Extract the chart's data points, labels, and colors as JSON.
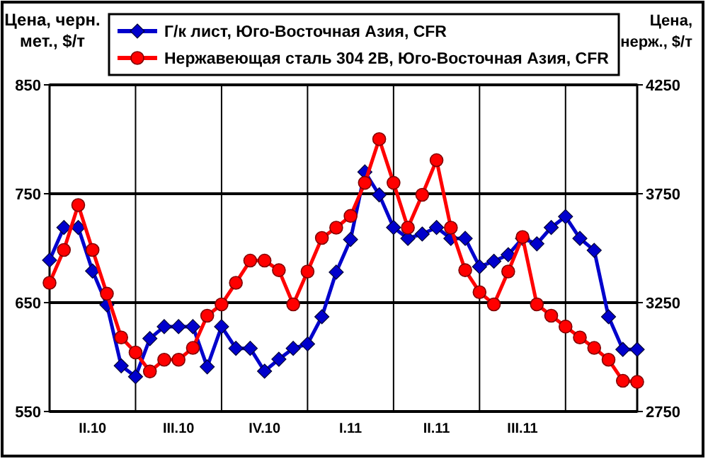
{
  "chart_data": {
    "type": "line",
    "ylabel": "Цена, черн.\nмет., $/т",
    "y2label": "Цена,\nнерж., $/т",
    "categories": [
      null,
      null,
      null,
      "II.10",
      null,
      null,
      null,
      null,
      null,
      "III.10",
      null,
      null,
      null,
      null,
      null,
      "IV.10",
      null,
      null,
      null,
      null,
      null,
      "I.11",
      null,
      null,
      null,
      null,
      null,
      "II.11",
      null,
      null,
      null,
      null,
      null,
      "III.11",
      null,
      null,
      null,
      null,
      null,
      null,
      null,
      null
    ],
    "ylim": [
      550,
      850
    ],
    "yticks": [
      550,
      650,
      750,
      850
    ],
    "y2lim": [
      2750,
      4250
    ],
    "y2ticks": [
      2750,
      3250,
      3750,
      4250
    ],
    "grid": true,
    "legend": "top",
    "line_style": "solid",
    "series": [
      {
        "name": "Г/к лист, Юго-Восточная Азия, CFR",
        "color": "#0000cc",
        "marker": "diamond",
        "values": [
          689,
          719,
          719,
          679,
          648,
          592,
          582,
          617,
          628,
          628,
          628,
          591,
          628,
          608,
          608,
          587,
          598,
          608,
          612,
          637,
          678,
          708,
          770,
          749,
          719,
          709,
          713,
          719,
          709,
          709,
          683,
          688,
          694,
          709,
          704,
          719,
          729,
          709,
          698,
          637,
          607,
          607
        ]
      },
      {
        "name": "Нержавеющая сталь 304 2B, Юго-Восточная Азия, CFR",
        "color": "#ff0000",
        "marker": "circle",
        "axis": "y2",
        "values": [
          3341,
          3492,
          3698,
          3492,
          3291,
          3090,
          3021,
          2934,
          2988,
          2988,
          3042,
          3190,
          3242,
          3341,
          3443,
          3443,
          3399,
          3242,
          3393,
          3547,
          3594,
          3648,
          3800,
          4001,
          3800,
          3594,
          3745,
          3904,
          3594,
          3399,
          3298,
          3242,
          3393,
          3551,
          3242,
          3190,
          3140,
          3090,
          3042,
          2988,
          2891,
          2886
        ]
      }
    ]
  }
}
